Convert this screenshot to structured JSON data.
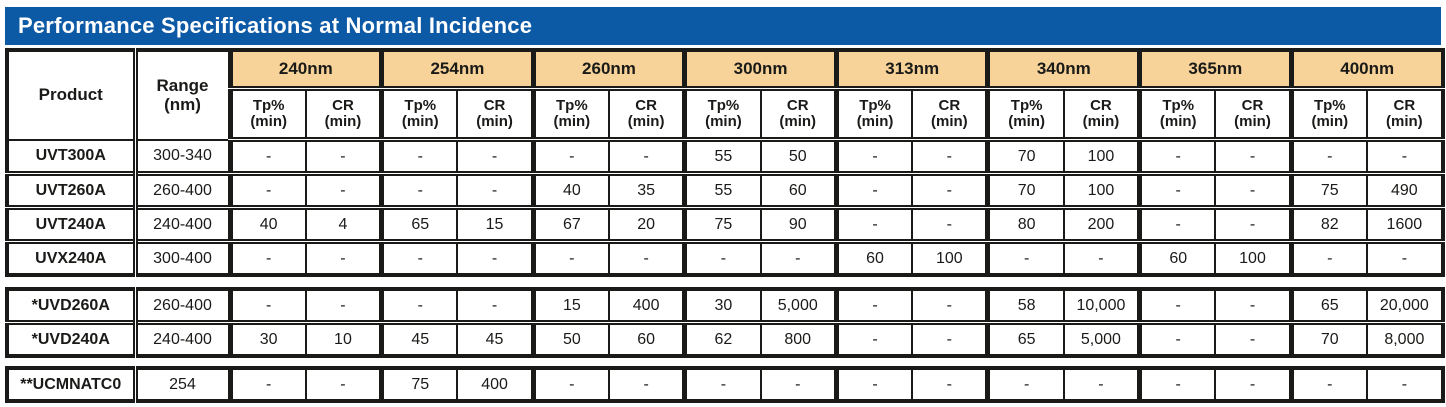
{
  "title": "Performance Specifications at Normal Incidence",
  "colors": {
    "title_bar_blue": "#0c59a6",
    "wavelength_band_tan": "#f8d399",
    "border_black": "#1a1a18",
    "title_text": "#ffffff"
  },
  "header": {
    "product_label": "Product",
    "range_label_line1": "Range",
    "range_label_line2": "(nm)",
    "wavelengths": [
      "240nm",
      "254nm",
      "260nm",
      "300nm",
      "313nm",
      "340nm",
      "365nm",
      "400nm"
    ],
    "tp_label": "Tp%",
    "cr_label": "CR",
    "min_label": "(min)"
  },
  "groups": [
    {
      "rows": [
        {
          "product": "UVT300A",
          "range": "300-340",
          "values": [
            "-",
            "-",
            "-",
            "-",
            "-",
            "-",
            "55",
            "50",
            "-",
            "-",
            "70",
            "100",
            "-",
            "-",
            "-",
            "-"
          ]
        },
        {
          "product": "UVT260A",
          "range": "260-400",
          "values": [
            "-",
            "-",
            "-",
            "-",
            "40",
            "35",
            "55",
            "60",
            "-",
            "-",
            "70",
            "100",
            "-",
            "-",
            "75",
            "490"
          ]
        },
        {
          "product": "UVT240A",
          "range": "240-400",
          "values": [
            "40",
            "4",
            "65",
            "15",
            "67",
            "20",
            "75",
            "90",
            "-",
            "-",
            "80",
            "200",
            "-",
            "-",
            "82",
            "1600"
          ]
        },
        {
          "product": "UVX240A",
          "range": "300-400",
          "values": [
            "-",
            "-",
            "-",
            "-",
            "-",
            "-",
            "-",
            "-",
            "60",
            "100",
            "-",
            "-",
            "60",
            "100",
            "-",
            "-"
          ]
        }
      ]
    },
    {
      "rows": [
        {
          "product": "*UVD260A",
          "range": "260-400",
          "values": [
            "-",
            "-",
            "-",
            "-",
            "15",
            "400",
            "30",
            "5,000",
            "-",
            "-",
            "58",
            "10,000",
            "-",
            "-",
            "65",
            "20,000"
          ]
        },
        {
          "product": "*UVD240A",
          "range": "240-400",
          "values": [
            "30",
            "10",
            "45",
            "45",
            "50",
            "60",
            "62",
            "800",
            "-",
            "-",
            "65",
            "5,000",
            "-",
            "-",
            "70",
            "8,000"
          ]
        }
      ]
    },
    {
      "rows": [
        {
          "product": "**UCMNATC0",
          "range": "254",
          "values": [
            "-",
            "-",
            "75",
            "400",
            "-",
            "-",
            "-",
            "-",
            "-",
            "-",
            "-",
            "-",
            "-",
            "-",
            "-",
            "-"
          ]
        }
      ]
    }
  ]
}
